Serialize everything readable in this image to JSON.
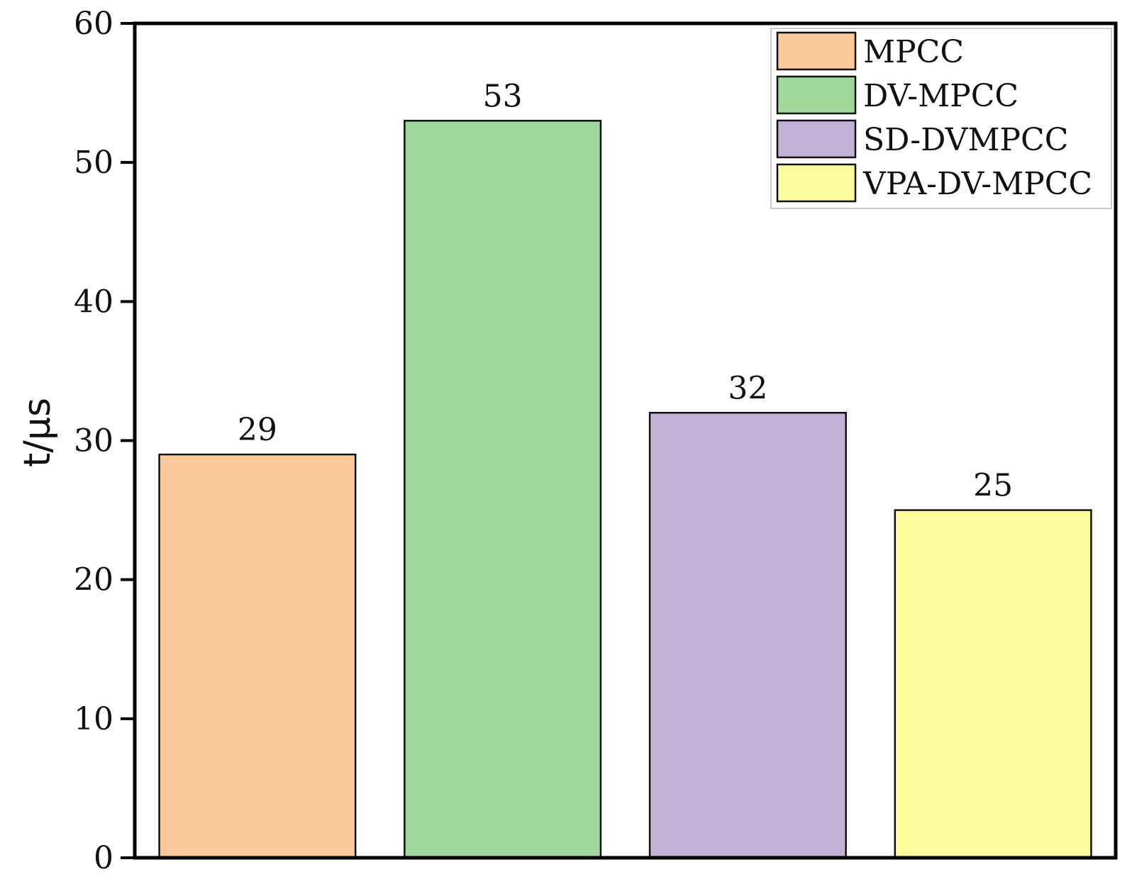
{
  "chart_data": {
    "type": "bar",
    "title": "",
    "xlabel": "",
    "ylabel": "t/μs",
    "ylim": [
      0,
      60
    ],
    "yticks": [
      0,
      10,
      20,
      30,
      40,
      50,
      60
    ],
    "grid": false,
    "legend_position": "top-right",
    "categories": [
      "MPCC",
      "DV-MPCC",
      "SD-DVMPCC",
      "VPA-DV-MPCC"
    ],
    "values": [
      29,
      53,
      32,
      25
    ],
    "data_labels": [
      "29",
      "53",
      "32",
      "25"
    ],
    "colors": [
      "#FBC99A",
      "#A0D89C",
      "#C3B1D6",
      "#FFFC9D"
    ],
    "legend": [
      {
        "label": "MPCC",
        "color": "#FBC99A"
      },
      {
        "label": "DV-MPCC",
        "color": "#A0D89C"
      },
      {
        "label": "SD-DVMPCC",
        "color": "#C3B1D6"
      },
      {
        "label": "VPA-DV-MPCC",
        "color": "#FFFC9D"
      }
    ]
  }
}
